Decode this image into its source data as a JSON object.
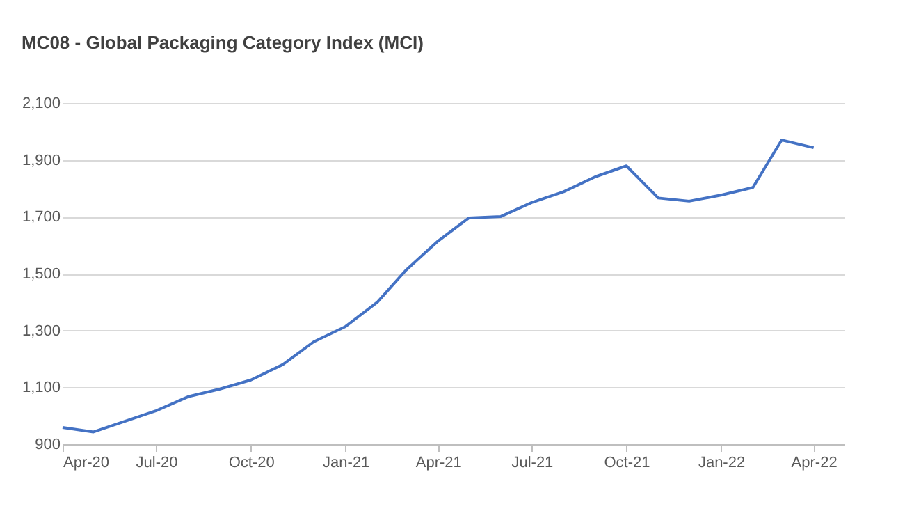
{
  "chart_data": {
    "type": "line",
    "title": "MC08 - Global Packaging Category Index  (MCI)",
    "x": [
      "2020-04",
      "2020-05",
      "2020-06",
      "2020-07",
      "2020-08",
      "2020-09",
      "2020-10",
      "2020-11",
      "2020-12",
      "2021-01",
      "2021-02",
      "2021-03",
      "2021-04",
      "2021-05",
      "2021-06",
      "2021-07",
      "2021-08",
      "2021-09",
      "2021-10",
      "2021-11",
      "2021-12",
      "2022-01",
      "2022-02",
      "2022-03",
      "2022-04"
    ],
    "series": [
      {
        "color": "#4472c4",
        "values": [
          959,
          943,
          981,
          1018,
          1067,
          1094,
          1126,
          1180,
          1260,
          1314,
          1400,
          1513,
          1615,
          1696,
          1701,
          1750,
          1788,
          1841,
          1879,
          1766,
          1755,
          1776,
          1803,
          1970,
          1943
        ]
      }
    ],
    "xlim": [
      "2020-04",
      "2022-05"
    ],
    "xticks": [
      {
        "value": "2020-04",
        "label": "Apr-20"
      },
      {
        "value": "2020-07",
        "label": "Jul-20"
      },
      {
        "value": "2020-10",
        "label": "Oct-20"
      },
      {
        "value": "2021-01",
        "label": "Jan-21"
      },
      {
        "value": "2021-04",
        "label": "Apr-21"
      },
      {
        "value": "2021-07",
        "label": "Jul-21"
      },
      {
        "value": "2021-10",
        "label": "Oct-21"
      },
      {
        "value": "2022-01",
        "label": "Jan-22"
      },
      {
        "value": "2022-04",
        "label": "Apr-22"
      }
    ],
    "ylim": [
      900,
      2100
    ],
    "yticks": [
      {
        "value": 900,
        "label": "900"
      },
      {
        "value": 1100,
        "label": "1,100"
      },
      {
        "value": 1300,
        "label": "1,300"
      },
      {
        "value": 1500,
        "label": "1,500"
      },
      {
        "value": 1700,
        "label": "1,700"
      },
      {
        "value": 1900,
        "label": "1,900"
      },
      {
        "value": 2100,
        "label": "2,100"
      }
    ],
    "grid": "y",
    "marker": "none",
    "line_style": "solid"
  }
}
